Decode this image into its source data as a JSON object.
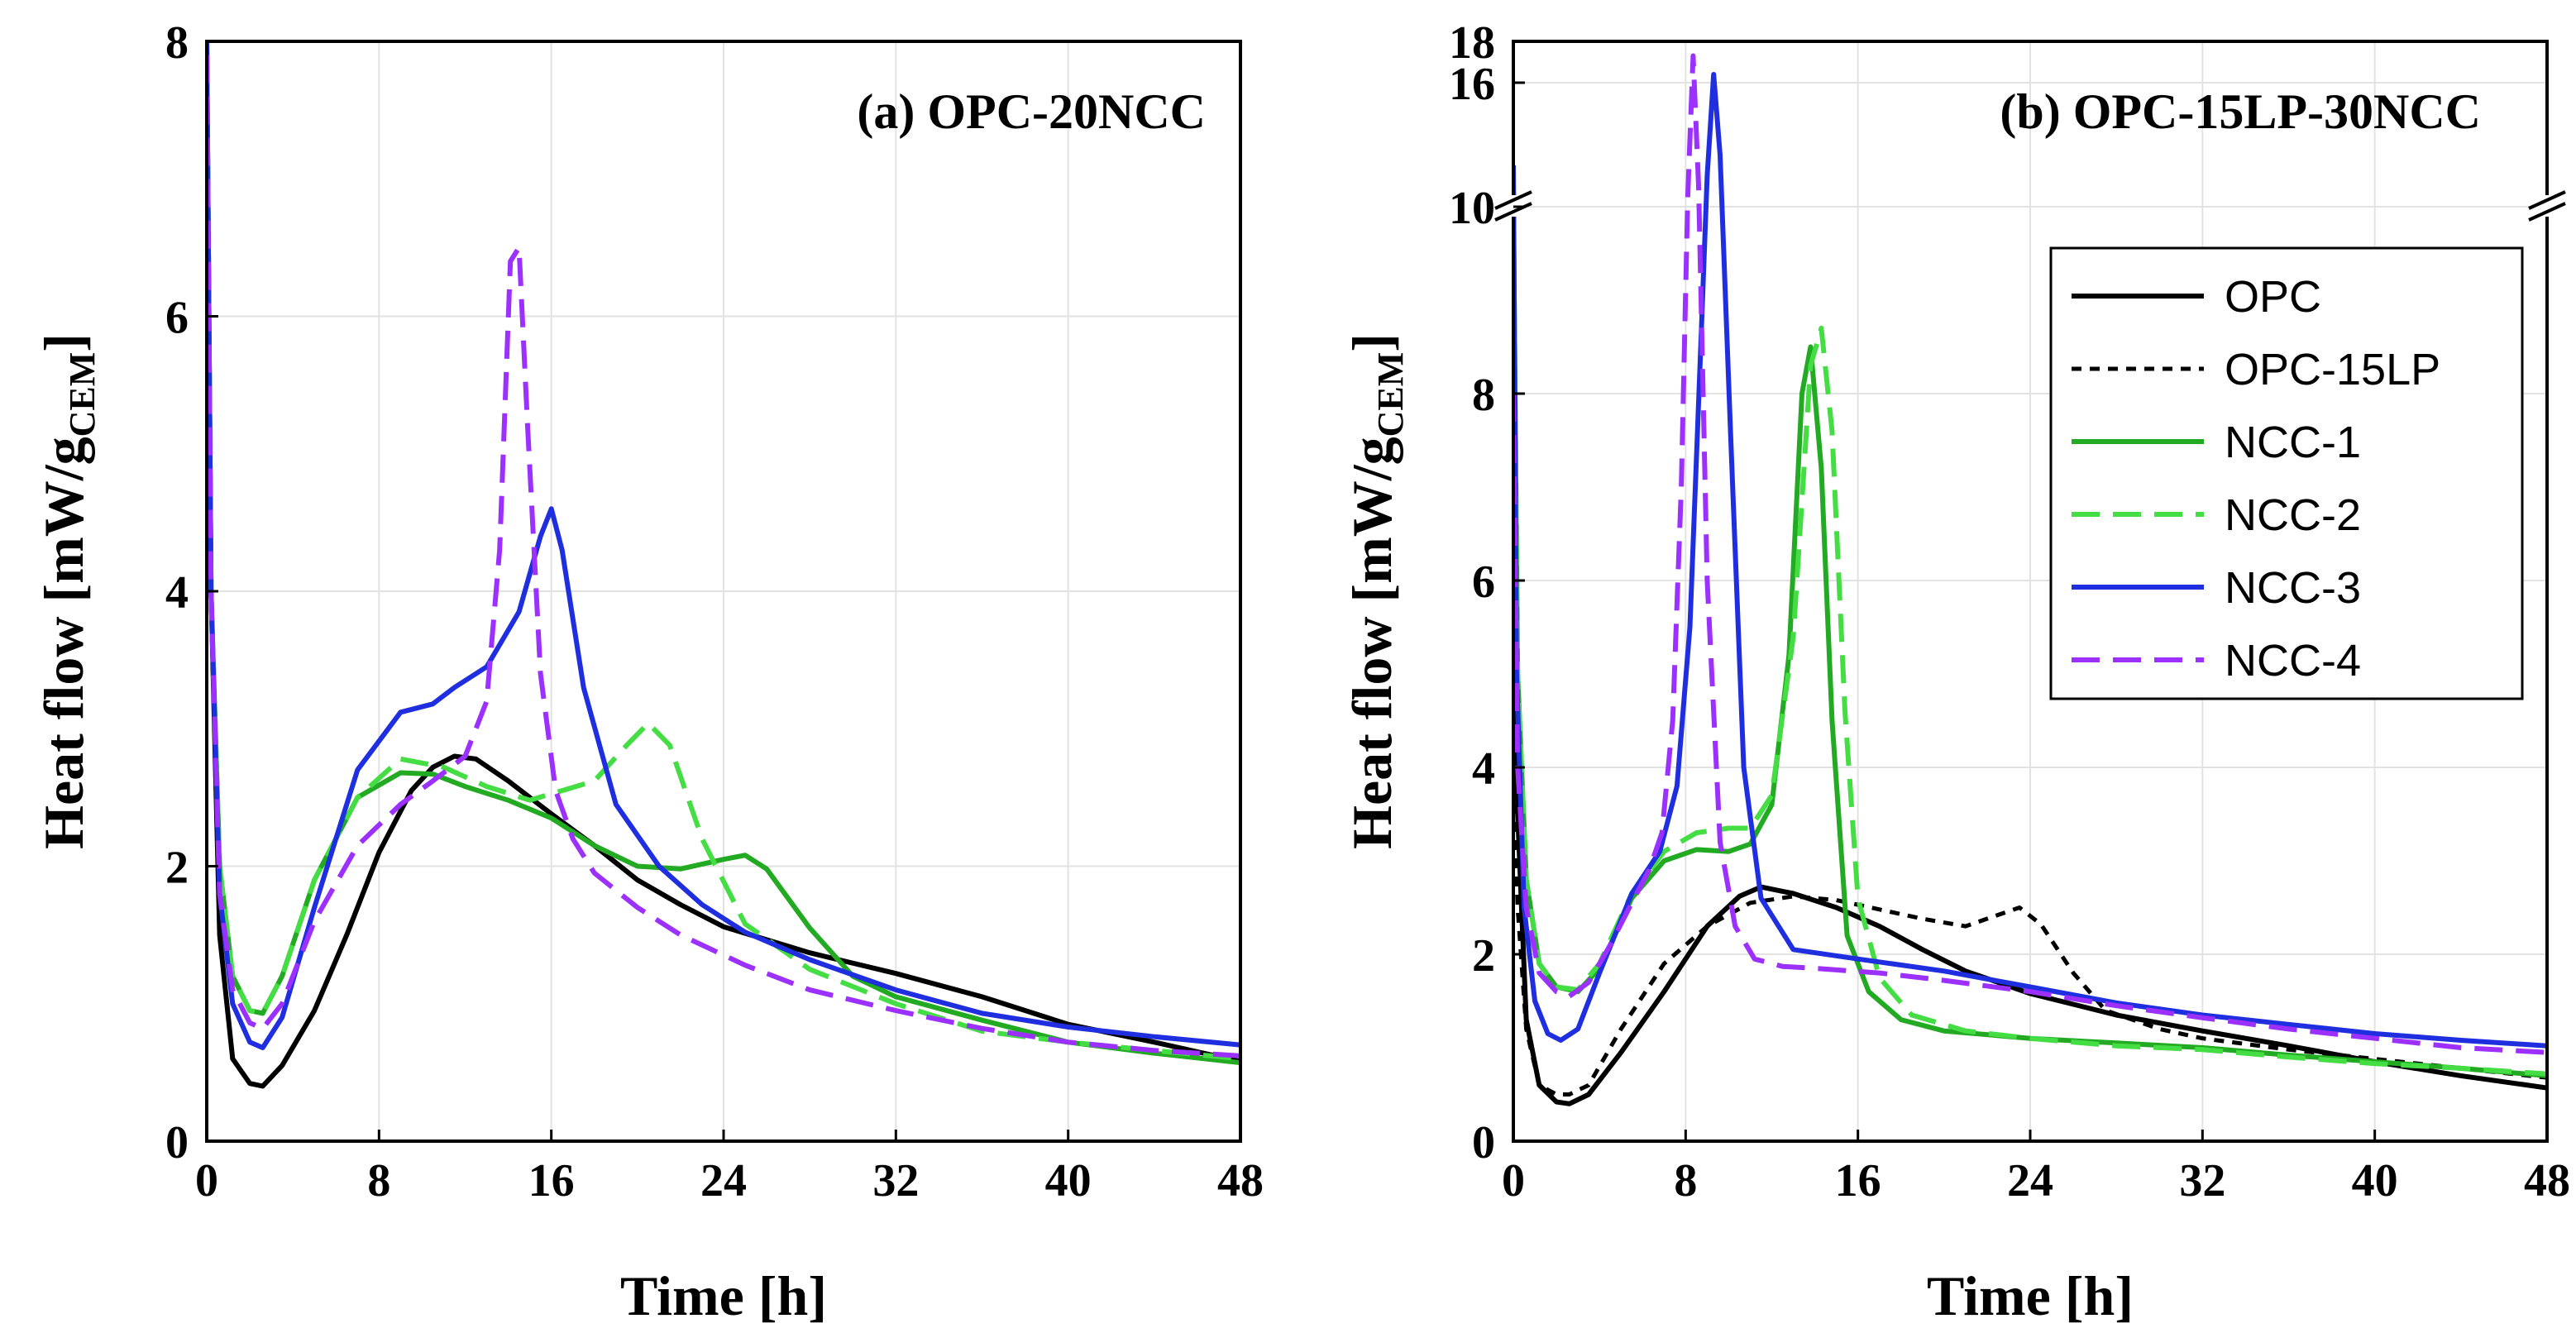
{
  "chart_data": [
    {
      "type": "line",
      "title": "(a) OPC-20NCC",
      "xlabel": "Time [h]",
      "ylabel_main": "Heat flow [mW/g",
      "ylabel_sub": "CEM",
      "ylabel_end": "]",
      "xlim": [
        0,
        48
      ],
      "ylim": [
        0,
        8
      ],
      "xticks": [
        0,
        8,
        16,
        24,
        32,
        40,
        48
      ],
      "yticks": [
        0,
        2,
        4,
        6,
        8
      ],
      "series": [
        {
          "name": "OPC",
          "color": "#000000",
          "dash": "solid",
          "x": [
            0,
            0.2,
            0.6,
            1.2,
            2,
            2.6,
            3.5,
            5,
            6.5,
            8,
            9.5,
            10.5,
            11.5,
            12.5,
            14,
            16,
            18,
            20,
            22,
            24,
            28,
            32,
            36,
            40,
            44,
            48
          ],
          "y": [
            8,
            4,
            1.5,
            0.6,
            0.42,
            0.4,
            0.55,
            0.95,
            1.5,
            2.1,
            2.55,
            2.72,
            2.8,
            2.78,
            2.62,
            2.38,
            2.15,
            1.9,
            1.72,
            1.56,
            1.37,
            1.22,
            1.05,
            0.85,
            0.72,
            0.58
          ]
        },
        {
          "name": "NCC-1",
          "color": "#22aa22",
          "dash": "solid",
          "x": [
            0,
            0.2,
            0.6,
            1.2,
            2,
            2.6,
            3.5,
            5,
            7,
            9,
            10.5,
            12,
            14,
            16,
            18,
            20,
            22,
            24,
            25,
            26,
            28,
            30,
            32,
            36,
            40,
            44,
            48
          ],
          "y": [
            8,
            4,
            2,
            1.2,
            0.95,
            0.93,
            1.2,
            1.9,
            2.5,
            2.68,
            2.67,
            2.58,
            2.48,
            2.35,
            2.15,
            2.0,
            1.98,
            2.05,
            2.08,
            1.98,
            1.55,
            1.2,
            1.05,
            0.88,
            0.72,
            0.64,
            0.57
          ]
        },
        {
          "name": "NCC-2",
          "color": "#44dd44",
          "dash": "dashed",
          "x": [
            0,
            0.2,
            0.6,
            1.2,
            2,
            2.6,
            3.5,
            5,
            7,
            9,
            11,
            13,
            15,
            16.5,
            18,
            19.5,
            20.5,
            21.5,
            23,
            25,
            28,
            32,
            36,
            40,
            44,
            48
          ],
          "y": [
            8,
            4,
            2,
            1.2,
            0.95,
            0.93,
            1.2,
            1.9,
            2.5,
            2.78,
            2.72,
            2.58,
            2.48,
            2.55,
            2.62,
            2.88,
            3.04,
            2.88,
            2.2,
            1.58,
            1.25,
            1.0,
            0.8,
            0.72,
            0.66,
            0.6
          ]
        },
        {
          "name": "NCC-3",
          "color": "#1f2fe0",
          "dash": "solid",
          "x": [
            0,
            0.2,
            0.6,
            1.2,
            2,
            2.6,
            3.5,
            5,
            7,
            9,
            10.5,
            11.5,
            13,
            14.5,
            15.5,
            16,
            16.5,
            17.5,
            19,
            21,
            23,
            25,
            28,
            32,
            36,
            40,
            44,
            48
          ],
          "y": [
            8,
            4,
            1.8,
            1.0,
            0.72,
            0.68,
            0.9,
            1.7,
            2.7,
            3.12,
            3.18,
            3.3,
            3.45,
            3.85,
            4.4,
            4.6,
            4.3,
            3.3,
            2.45,
            2.0,
            1.72,
            1.52,
            1.32,
            1.1,
            0.93,
            0.83,
            0.76,
            0.7
          ]
        },
        {
          "name": "NCC-4",
          "color": "#9b30ff",
          "dash": "dashed",
          "x": [
            0,
            0.2,
            0.6,
            1.2,
            2,
            2.6,
            3.5,
            5,
            7,
            9,
            10.5,
            12,
            13,
            13.6,
            14.1,
            14.5,
            14.9,
            15.5,
            16.2,
            17,
            18,
            20,
            22,
            25,
            28,
            32,
            36,
            40,
            44,
            48
          ],
          "y": [
            7.9,
            4,
            1.8,
            1.1,
            0.86,
            0.82,
            1.0,
            1.6,
            2.15,
            2.45,
            2.62,
            2.8,
            3.2,
            4.3,
            6.4,
            6.5,
            5.2,
            3.4,
            2.55,
            2.2,
            1.95,
            1.7,
            1.5,
            1.28,
            1.1,
            0.95,
            0.82,
            0.72,
            0.66,
            0.62
          ]
        }
      ]
    },
    {
      "type": "line",
      "title": "(b) OPC-15LP-30NCC",
      "xlabel": "Time [h]",
      "ylabel_main": "Heat flow [mW/g",
      "ylabel_sub": "CEM",
      "ylabel_end": "]",
      "xlim": [
        0,
        48
      ],
      "ylim": [
        0,
        10
      ],
      "ylim_upper": [
        10,
        18
      ],
      "axis_break": true,
      "xticks": [
        0,
        8,
        16,
        24,
        32,
        40,
        48
      ],
      "yticks": [
        0,
        2,
        4,
        6,
        8,
        10
      ],
      "yticks_upper": [
        16,
        18
      ],
      "legend": [
        "OPC",
        "OPC-15LP",
        "NCC-1",
        "NCC-2",
        "NCC-3",
        "NCC-4"
      ],
      "legend_position": "top-right",
      "series": [
        {
          "name": "OPC",
          "color": "#000000",
          "dash": "solid",
          "x": [
            0,
            0.2,
            0.6,
            1.2,
            2,
            2.6,
            3.5,
            5,
            7,
            9,
            10.5,
            11.5,
            13,
            15,
            17,
            19,
            21,
            24,
            28,
            32,
            36,
            40,
            44,
            48
          ],
          "y": [
            8,
            3.5,
            1.3,
            0.6,
            0.42,
            0.4,
            0.5,
            0.95,
            1.6,
            2.3,
            2.62,
            2.72,
            2.65,
            2.5,
            2.3,
            2.05,
            1.82,
            1.58,
            1.35,
            1.18,
            1.02,
            0.85,
            0.7,
            0.57
          ]
        },
        {
          "name": "OPC-15LP",
          "color": "#000000",
          "dash": "dotted",
          "x": [
            0,
            0.2,
            0.6,
            1.2,
            2,
            2.6,
            3.5,
            5,
            7,
            9,
            11,
            13,
            15,
            17,
            19,
            21,
            22.5,
            23.5,
            24.5,
            26,
            27.5,
            30,
            32,
            36,
            40,
            44,
            48
          ],
          "y": [
            4,
            2.5,
            1.2,
            0.6,
            0.5,
            0.5,
            0.6,
            1.2,
            1.9,
            2.3,
            2.55,
            2.62,
            2.58,
            2.48,
            2.38,
            2.3,
            2.42,
            2.5,
            2.32,
            1.8,
            1.4,
            1.2,
            1.1,
            0.98,
            0.88,
            0.78,
            0.68
          ]
        },
        {
          "name": "NCC-1",
          "color": "#22aa22",
          "dash": "solid",
          "x": [
            0,
            0.2,
            0.6,
            1.2,
            2,
            3,
            4,
            5.5,
            7,
            8.5,
            10,
            11,
            12,
            12.8,
            13.4,
            13.8,
            14.3,
            14.8,
            15.5,
            16.5,
            18,
            20,
            24,
            28,
            32,
            36,
            40,
            44,
            48
          ],
          "y": [
            10,
            5,
            2.8,
            1.9,
            1.65,
            1.6,
            1.85,
            2.6,
            3.0,
            3.12,
            3.1,
            3.18,
            3.6,
            5.2,
            8.0,
            8.5,
            7.2,
            4.5,
            2.2,
            1.6,
            1.3,
            1.18,
            1.1,
            1.05,
            1.0,
            0.92,
            0.85,
            0.78,
            0.7
          ]
        },
        {
          "name": "NCC-2",
          "color": "#44dd44",
          "dash": "dashed",
          "x": [
            0,
            0.2,
            0.6,
            1.2,
            2,
            3,
            4,
            5.5,
            7,
            8.5,
            10,
            11,
            12,
            13,
            13.8,
            14.3,
            14.8,
            15.4,
            16,
            17,
            18.5,
            21,
            24,
            28,
            32,
            36,
            40,
            44,
            48
          ],
          "y": [
            10,
            5,
            2.8,
            1.9,
            1.65,
            1.62,
            1.9,
            2.65,
            3.1,
            3.3,
            3.35,
            3.35,
            3.7,
            5.4,
            8.3,
            8.7,
            7.6,
            4.6,
            2.6,
            1.75,
            1.35,
            1.18,
            1.1,
            1.02,
            0.98,
            0.9,
            0.83,
            0.78,
            0.72
          ]
        },
        {
          "name": "NCC-3",
          "color": "#1f2fe0",
          "dash": "solid",
          "x": [
            0,
            0.15,
            0.5,
            1,
            1.6,
            2.2,
            3,
            4,
            5.5,
            6.8,
            7.6,
            8.2,
            8.7,
            9.0,
            9.3,
            9.6,
            10.1,
            10.7,
            11.5,
            13,
            16,
            20,
            24,
            28,
            32,
            36,
            40,
            44,
            48
          ],
          "y": [
            12,
            5,
            2.5,
            1.5,
            1.15,
            1.08,
            1.2,
            1.8,
            2.65,
            3.1,
            3.8,
            5.5,
            8.5,
            11.5,
            16.4,
            12.5,
            7.5,
            4.0,
            2.6,
            2.05,
            1.95,
            1.82,
            1.65,
            1.48,
            1.35,
            1.25,
            1.15,
            1.08,
            1.02
          ]
        },
        {
          "name": "NCC-4",
          "color": "#9b30ff",
          "dash": "dashed",
          "x": [
            0,
            0.2,
            0.6,
            1.2,
            2,
            2.6,
            3.5,
            4.5,
            5.5,
            6.3,
            6.9,
            7.4,
            7.8,
            8.1,
            8.35,
            8.6,
            9.0,
            9.6,
            10.3,
            11.2,
            12.5,
            14,
            17,
            20,
            24,
            28,
            32,
            36,
            40,
            44,
            48
          ],
          "y": [
            8,
            4,
            2.5,
            1.8,
            1.6,
            1.55,
            1.7,
            2.1,
            2.55,
            2.9,
            3.3,
            4.5,
            7.0,
            10.5,
            17.3,
            11.0,
            6.0,
            3.2,
            2.3,
            1.95,
            1.87,
            1.85,
            1.8,
            1.72,
            1.6,
            1.45,
            1.32,
            1.2,
            1.1,
            1.0,
            0.95
          ]
        }
      ]
    }
  ]
}
